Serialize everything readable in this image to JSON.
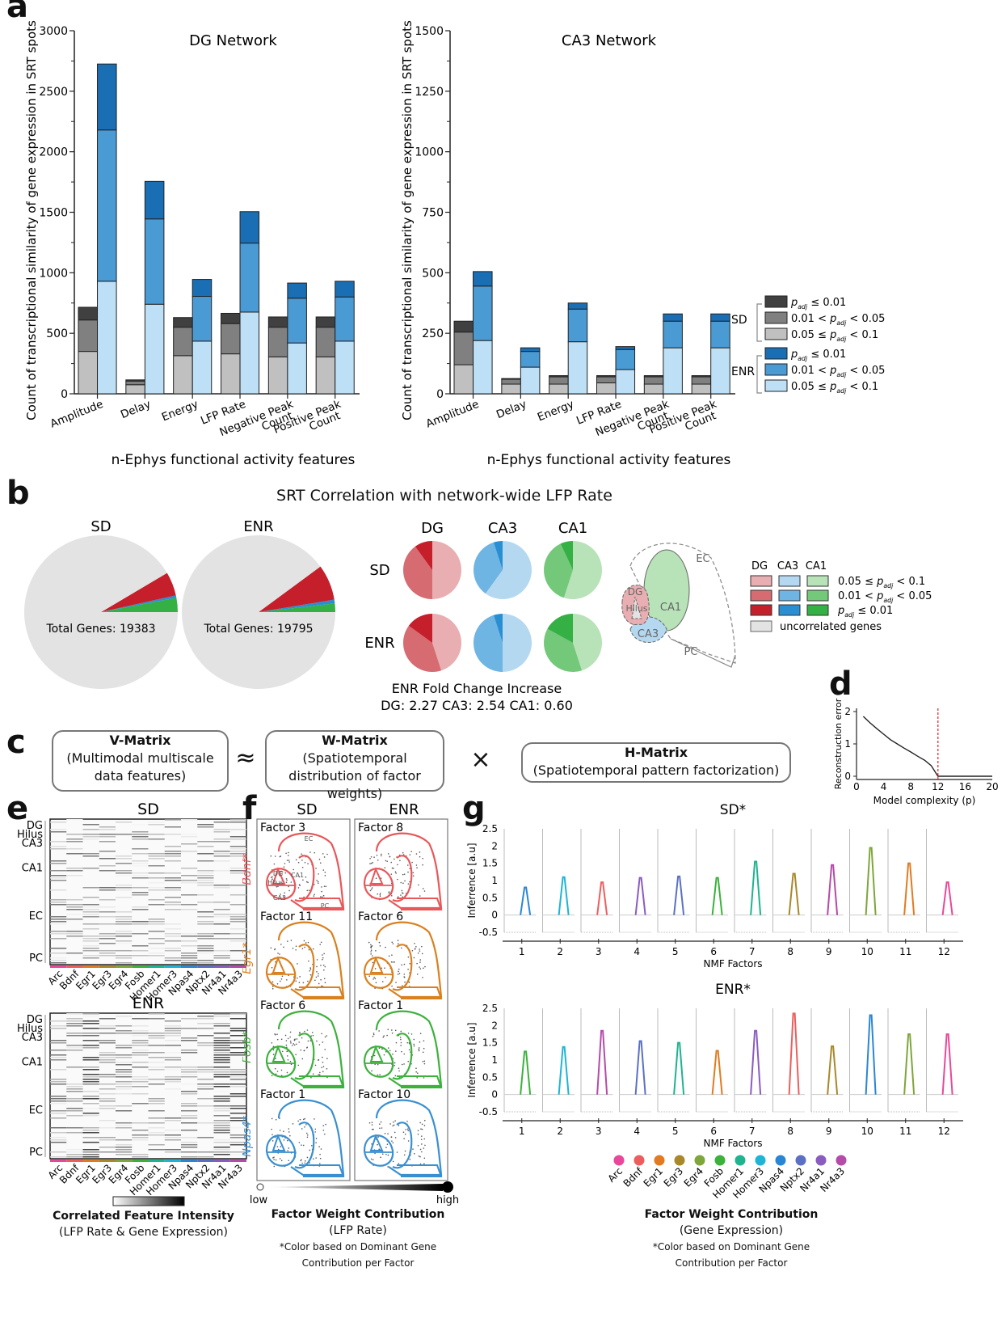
{
  "panels": {
    "a": "a",
    "b": "b",
    "c": "c",
    "d": "d",
    "e": "e",
    "f": "f",
    "g": "g"
  },
  "colors": {
    "sd": [
      "#c0c0c0",
      "#808080",
      "#404040"
    ],
    "enr": [
      "#bde0f6",
      "#4a9ad4",
      "#1a6eb3"
    ],
    "dg": [
      "#e8aeb1",
      "#d66b71",
      "#c41f2a"
    ],
    "ca3": [
      "#b5d8f1",
      "#6eb5e3",
      "#2a8fd2"
    ],
    "ca1": [
      "#b8e2b8",
      "#74c87a",
      "#35b044"
    ],
    "uncorrelated": "#e3e3e3"
  },
  "chart_data": [
    {
      "id": "dg-network",
      "type": "bar",
      "subtype": "grouped-stacked",
      "title": "DG Network",
      "xlabel": "n-Ephys functional activity features",
      "ylabel": "Count of transcriptional similarity of gene expression in SRT spots",
      "ylim": [
        0,
        3000
      ],
      "yticks": [
        0,
        500,
        1000,
        1500,
        2000,
        2500,
        3000
      ],
      "categories": [
        "Amplitude",
        "Delay",
        "Energy",
        "LFP Rate",
        "Negative Peak Count",
        "Positive Peak Count"
      ],
      "stack_levels": [
        "0.05 ≤ p_adj < 0.1",
        "0.01 < p_adj < 0.05",
        "p_adj ≤ 0.01"
      ],
      "series": [
        {
          "name": "SD",
          "stacks": [
            [
              350,
              260,
              105
            ],
            [
              75,
              30,
              10
            ],
            [
              315,
              235,
              80
            ],
            [
              330,
              250,
              85
            ],
            [
              305,
              245,
              85
            ],
            [
              305,
              245,
              85
            ]
          ]
        },
        {
          "name": "ENR",
          "stacks": [
            [
              930,
              1250,
              545
            ],
            [
              740,
              705,
              310
            ],
            [
              435,
              370,
              140
            ],
            [
              675,
              570,
              260
            ],
            [
              420,
              370,
              125
            ],
            [
              435,
              365,
              130
            ]
          ]
        }
      ]
    },
    {
      "id": "ca3-network",
      "type": "bar",
      "subtype": "grouped-stacked",
      "title": "CA3 Network",
      "xlabel": "n-Ephys functional activity features",
      "ylabel": "Count of transcriptional similarity of gene expression in SRT spots",
      "ylim": [
        0,
        1500
      ],
      "yticks": [
        0,
        250,
        500,
        750,
        1000,
        1250,
        1500
      ],
      "categories": [
        "Amplitude",
        "Delay",
        "Energy",
        "LFP Rate",
        "Negative Peak Count",
        "Positive Peak Count"
      ],
      "stack_levels": [
        "0.05 ≤ p_adj < 0.1",
        "0.01 < p_adj < 0.05",
        "p_adj ≤ 0.01"
      ],
      "series": [
        {
          "name": "SD",
          "stacks": [
            [
              120,
              135,
              45
            ],
            [
              40,
              20,
              3
            ],
            [
              40,
              30,
              5
            ],
            [
              45,
              25,
              5
            ],
            [
              40,
              30,
              5
            ],
            [
              40,
              30,
              5
            ]
          ]
        },
        {
          "name": "ENR",
          "stacks": [
            [
              220,
              225,
              60
            ],
            [
              110,
              65,
              15
            ],
            [
              215,
              135,
              25
            ],
            [
              100,
              83,
              12
            ],
            [
              190,
              110,
              30
            ],
            [
              190,
              110,
              30
            ]
          ]
        }
      ]
    },
    {
      "id": "total-pies",
      "type": "pie",
      "title": "SRT Correlation with network-wide LFP Rate",
      "pies": [
        {
          "name": "SD",
          "label": "Total Genes: 19383",
          "slices": [
            {
              "name": "DG",
              "value": 5.0,
              "color": "#c41f2a"
            },
            {
              "name": "CA3",
              "value": 0.5,
              "color": "#2a8fd2"
            },
            {
              "name": "CA1",
              "value": 3.0,
              "color": "#35b044"
            },
            {
              "name": "uncorrelated",
              "value": 91.5,
              "color": "#e3e3e3"
            }
          ]
        },
        {
          "name": "ENR",
          "label": "Total Genes: 19795",
          "slices": [
            {
              "name": "DG",
              "value": 7.5,
              "color": "#c41f2a"
            },
            {
              "name": "CA3",
              "value": 0.8,
              "color": "#2a8fd2"
            },
            {
              "name": "CA1",
              "value": 1.8,
              "color": "#35b044"
            },
            {
              "name": "uncorrelated",
              "value": 89.9,
              "color": "#e3e3e3"
            }
          ]
        }
      ]
    },
    {
      "id": "region-pies",
      "type": "pie",
      "columns": [
        "DG",
        "CA3",
        "CA1"
      ],
      "rows": [
        "SD",
        "ENR"
      ],
      "levels": [
        "0.05 ≤ p_adj < 0.1",
        "0.01 < p_adj < 0.05",
        "p_adj ≤ 0.01"
      ],
      "values": {
        "SD": {
          "DG": [
            50,
            40,
            10
          ],
          "CA3": [
            60,
            35,
            5
          ],
          "CA1": [
            55,
            38,
            7
          ]
        },
        "ENR": {
          "DG": [
            45,
            40,
            15
          ],
          "CA3": [
            50,
            45,
            5
          ],
          "CA1": [
            45,
            38,
            17
          ]
        }
      },
      "footer_title": "ENR Fold Change Increase",
      "fold_change": [
        {
          "region": "DG",
          "value": "2.27"
        },
        {
          "region": "CA3",
          "value": "2.54"
        },
        {
          "region": "CA1",
          "value": "0.60"
        }
      ]
    },
    {
      "id": "reconstruction-error",
      "type": "line",
      "xlabel": "Model complexity (p)",
      "ylabel": "Reconstruction error",
      "xlim": [
        0,
        20
      ],
      "ylim": [
        0,
        2
      ],
      "xticks": [
        0,
        4,
        8,
        12,
        16,
        20
      ],
      "yticks": [
        0,
        1,
        2
      ],
      "x": [
        1,
        2,
        3,
        4,
        5,
        6,
        7,
        8,
        9,
        10,
        11,
        12,
        13,
        14,
        15,
        16,
        17,
        18,
        19,
        20
      ],
      "y": [
        1.85,
        1.65,
        1.47,
        1.3,
        1.13,
        1.0,
        0.87,
        0.75,
        0.62,
        0.5,
        0.33,
        0.0,
        0.0,
        0.0,
        0.0,
        0.0,
        0.0,
        0.0,
        0.0,
        0.0
      ],
      "vline": 12
    },
    {
      "id": "nmf-sd",
      "type": "line",
      "title": "SD*",
      "xlabel": "NMF Factors",
      "ylabel": "Inferrence [a.u]",
      "ylim": [
        -0.5,
        2.5
      ],
      "yticks": [
        -0.5,
        0,
        0.5,
        1,
        1.5,
        2,
        2.5
      ],
      "xticks": [
        1,
        2,
        3,
        4,
        5,
        6,
        7,
        8,
        9,
        10,
        11,
        12
      ],
      "peaks": [
        {
          "factor": 1,
          "gene": "Npas4",
          "value": 0.8
        },
        {
          "factor": 2,
          "gene": "Homer3",
          "value": 1.1
        },
        {
          "factor": 3,
          "gene": "Bdnf",
          "value": 0.95
        },
        {
          "factor": 4,
          "gene": "Nr4a1",
          "value": 1.08
        },
        {
          "factor": 5,
          "gene": "Nptx2",
          "value": 1.12
        },
        {
          "factor": 6,
          "gene": "Fosb",
          "value": 1.08
        },
        {
          "factor": 7,
          "gene": "Homer1",
          "value": 1.55
        },
        {
          "factor": 8,
          "gene": "Egr3",
          "value": 1.2
        },
        {
          "factor": 9,
          "gene": "Nr4a3",
          "value": 1.45
        },
        {
          "factor": 10,
          "gene": "Egr4",
          "value": 1.95
        },
        {
          "factor": 11,
          "gene": "Egr1",
          "value": 1.5
        },
        {
          "factor": 12,
          "gene": "Arc",
          "value": 0.95
        }
      ]
    },
    {
      "id": "nmf-enr",
      "type": "line",
      "title": "ENR*",
      "xlabel": "NMF Factors",
      "ylabel": "Inferrence [a.u]",
      "ylim": [
        -0.5,
        2.5
      ],
      "yticks": [
        -0.5,
        0,
        0.5,
        1,
        1.5,
        2,
        2.5
      ],
      "xticks": [
        1,
        2,
        3,
        4,
        5,
        6,
        7,
        8,
        9,
        10,
        11,
        12
      ],
      "peaks": [
        {
          "factor": 1,
          "gene": "Fosb",
          "value": 1.25
        },
        {
          "factor": 2,
          "gene": "Homer3",
          "value": 1.38
        },
        {
          "factor": 3,
          "gene": "Nr4a3",
          "value": 1.85
        },
        {
          "factor": 4,
          "gene": "Nptx2",
          "value": 1.55
        },
        {
          "factor": 5,
          "gene": "Homer1",
          "value": 1.5
        },
        {
          "factor": 6,
          "gene": "Egr1",
          "value": 1.27
        },
        {
          "factor": 7,
          "gene": "Nr4a1",
          "value": 1.85
        },
        {
          "factor": 8,
          "gene": "Bdnf",
          "value": 2.35
        },
        {
          "factor": 9,
          "gene": "Egr3",
          "value": 1.4
        },
        {
          "factor": 10,
          "gene": "Npas4",
          "value": 2.3
        },
        {
          "factor": 11,
          "gene": "Egr4",
          "value": 1.75
        },
        {
          "factor": 12,
          "gene": "Arc",
          "value": 1.75
        }
      ]
    }
  ],
  "panel_a": {
    "legend": {
      "groups": [
        {
          "name": "SD",
          "items": [
            {
              "label": "p_adj ≤ 0.01",
              "level": 2
            },
            {
              "label": "0.01 < p_adj < 0.05",
              "level": 1
            },
            {
              "label": "0.05 ≤ p_adj < 0.1",
              "level": 0
            }
          ]
        },
        {
          "name": "ENR",
          "items": [
            {
              "label": "p_adj ≤ 0.01",
              "level": 2
            },
            {
              "label": "0.01 < p_adj < 0.05",
              "level": 1
            },
            {
              "label": "0.05 ≤ p_adj < 0.1",
              "level": 0
            }
          ]
        }
      ]
    }
  },
  "panel_b": {
    "legend": {
      "headers": [
        "DG",
        "CA3",
        "CA1"
      ],
      "rows": [
        "0.05 ≤ p_adj < 0.1",
        "0.01 < p_adj < 0.05",
        "p_adj ≤ 0.01"
      ],
      "uncorrelated": "uncorrelated genes"
    },
    "anatomy_labels": [
      "EC",
      "DG",
      "Hilus",
      "CA1",
      "CA3",
      "PC"
    ]
  },
  "panel_c": {
    "v": {
      "title": "V-Matrix",
      "subtitle": "(Multimodal multiscale data features)"
    },
    "w": {
      "title": "W-Matrix",
      "subtitle": "(Spatiotemporal distribution of factor weights)"
    },
    "h": {
      "title": "H-Matrix",
      "subtitle": "(Spatiotemporal pattern factorization)"
    },
    "approx": "≈",
    "times": "×"
  },
  "panel_e": {
    "sd_title": "SD",
    "enr_title": "ENR",
    "regions": [
      "DG",
      "Hilus",
      "CA3",
      "CA1",
      "EC",
      "PC"
    ],
    "genes": [
      "Arc",
      "Bdnf",
      "Egr1",
      "Egr3",
      "Egr4",
      "Fosb",
      "Homer1",
      "Homer3",
      "Npas4",
      "Nptx2",
      "Nr4a1",
      "Nr4a3"
    ],
    "colorbar_title": "Correlated Feature Intensity",
    "colorbar_subtitle": "(LFP Rate & Gene Expression)"
  },
  "panel_f": {
    "sd_title": "SD",
    "enr_title": "ENR",
    "rows": [
      {
        "gene": "Bdnf*",
        "color": "#e8575a",
        "sd_factor": "Factor 3",
        "enr_factor": "Factor 8"
      },
      {
        "gene": "Egr1*",
        "color": "#d9801f",
        "sd_factor": "Factor 11",
        "enr_factor": "Factor 6"
      },
      {
        "gene": "Fosb*",
        "color": "#3cb13c",
        "sd_factor": "Factor 6",
        "enr_factor": "Factor 1"
      },
      {
        "gene": "Npas4*",
        "color": "#3a8fd0",
        "sd_factor": "Factor 1",
        "enr_factor": "Factor 10"
      }
    ],
    "region_labels": [
      "EC",
      "DG",
      "CA1",
      "Hilus",
      "CA3",
      "PC"
    ],
    "low": "low",
    "high": "high",
    "title": "Factor Weight Contribution",
    "subtitle": "(LFP Rate)",
    "note1": "*Color based on Dominant Gene",
    "note2": "Contribution per Factor"
  },
  "panel_g": {
    "genes": [
      {
        "name": "Arc",
        "color": "#e8489a"
      },
      {
        "name": "Bdnf",
        "color": "#ee5d5d"
      },
      {
        "name": "Egr1",
        "color": "#e07b22"
      },
      {
        "name": "Egr3",
        "color": "#a8882a"
      },
      {
        "name": "Egr4",
        "color": "#7ea63a"
      },
      {
        "name": "Fosb",
        "color": "#3cb13c"
      },
      {
        "name": "Homer1",
        "color": "#1fb38f"
      },
      {
        "name": "Homer3",
        "color": "#1db4d6"
      },
      {
        "name": "Npas4",
        "color": "#2a86d3"
      },
      {
        "name": "Nptx2",
        "color": "#5b70c4"
      },
      {
        "name": "Nr4a1",
        "color": "#8a5cc0"
      },
      {
        "name": "Nr4a3",
        "color": "#b54aa8"
      }
    ],
    "title": "Factor Weight Contribution",
    "subtitle": "(Gene Expression)",
    "note1": "*Color based on Dominant Gene",
    "note2": "Contribution per Factor"
  }
}
